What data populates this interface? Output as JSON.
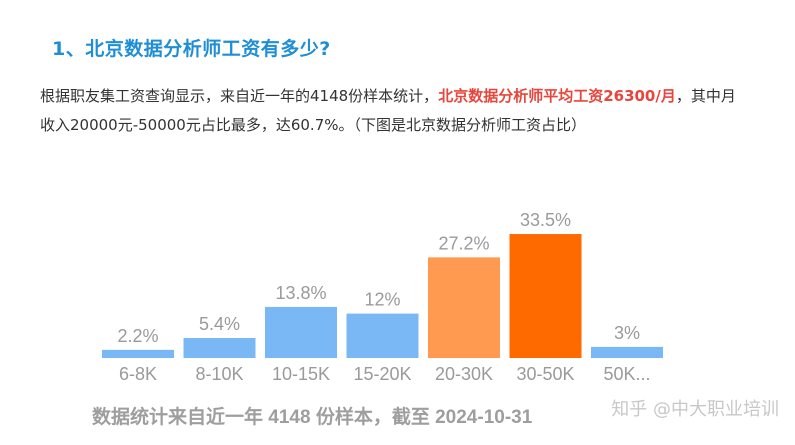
{
  "heading": "1、北京数据分析师工资有多少?",
  "paragraph": {
    "part1": "根据职友集工资查询显示，来自近一年的4148份样本统计，",
    "highlight": "北京数据分析师平均工资26300/月",
    "part2": "，其中月收入20000元-50000元占比最多，达60.7%。（下图是北京数据分析师工资占比）"
  },
  "chart_data": {
    "type": "bar",
    "categories": [
      "6-8K",
      "8-10K",
      "10-15K",
      "15-20K",
      "20-30K",
      "30-50K",
      "50K..."
    ],
    "values": [
      2.2,
      5.4,
      13.8,
      12,
      27.2,
      33.5,
      3
    ],
    "labels": [
      "2.2%",
      "5.4%",
      "13.8%",
      "12%",
      "27.2%",
      "33.5%",
      "3%"
    ],
    "colors": [
      "#7ab8f5",
      "#7ab8f5",
      "#7ab8f5",
      "#7ab8f5",
      "#ff9a50",
      "#ff6a00",
      "#7ab8f5"
    ],
    "source_note": "数据统计来自近一年 4148 份样本，截至 2024-10-31",
    "ylim": [
      0,
      35
    ]
  },
  "watermark": "知乎 @中大职业培训"
}
